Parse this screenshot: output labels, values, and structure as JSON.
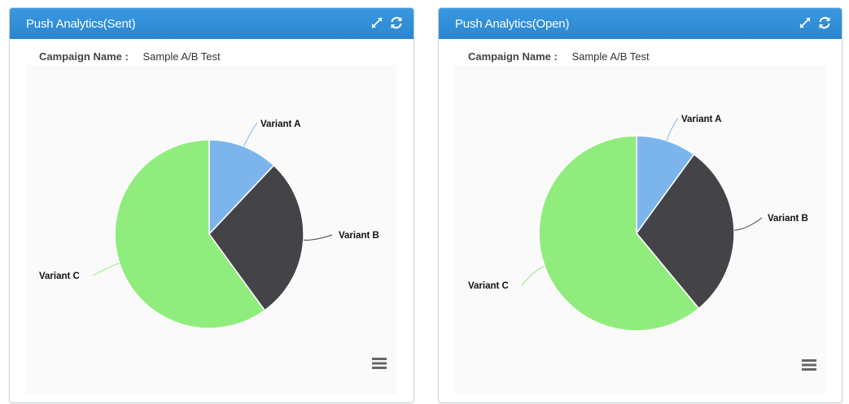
{
  "panels": {
    "sent": {
      "title": "Push Analytics(Sent)",
      "campaign_label": "Campaign Name :",
      "campaign_value": "Sample A/B Test"
    },
    "open": {
      "title": "Push Analytics(Open)",
      "campaign_label": "Campaign Name :",
      "campaign_value": "Sample A/B Test"
    }
  },
  "icons": [
    "expand-icon",
    "refresh-icon",
    "hamburger-menu-icon"
  ],
  "colors": {
    "header": "#2a86d0",
    "variant_a": "#7cb5ec",
    "variant_b": "#434348",
    "variant_c": "#90ed7d"
  },
  "chart_data": [
    {
      "type": "pie",
      "categories": [
        "Variant A",
        "Variant B",
        "Variant C"
      ],
      "values": [
        12,
        28,
        60
      ]
    },
    {
      "type": "pie",
      "categories": [
        "Variant A",
        "Variant B",
        "Variant C"
      ],
      "values": [
        10,
        29,
        61
      ]
    }
  ]
}
